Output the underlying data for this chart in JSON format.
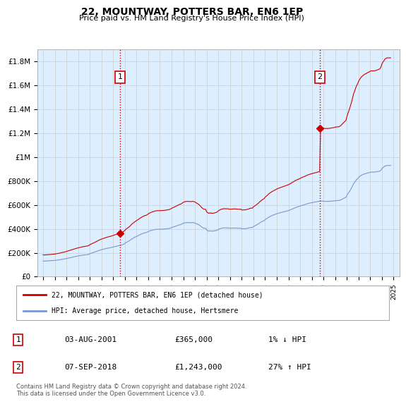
{
  "title": "22, MOUNTWAY, POTTERS BAR, EN6 1EP",
  "subtitle": "Price paid vs. HM Land Registry's House Price Index (HPI)",
  "ylabel_ticks": [
    "£0",
    "£200K",
    "£400K",
    "£600K",
    "£800K",
    "£1M",
    "£1.2M",
    "£1.4M",
    "£1.6M",
    "£1.8M"
  ],
  "ytick_values": [
    0,
    200000,
    400000,
    600000,
    800000,
    1000000,
    1200000,
    1400000,
    1600000,
    1800000
  ],
  "ylim": [
    0,
    1900000
  ],
  "xlim_years": [
    1994.5,
    2025.5
  ],
  "xtick_years": [
    1995,
    1996,
    1997,
    1998,
    1999,
    2000,
    2001,
    2002,
    2003,
    2004,
    2005,
    2006,
    2007,
    2008,
    2009,
    2010,
    2011,
    2012,
    2013,
    2014,
    2015,
    2016,
    2017,
    2018,
    2019,
    2020,
    2021,
    2022,
    2023,
    2024,
    2025
  ],
  "sale1_x": 2001.59,
  "sale1_y": 365000,
  "sale1_label": "1",
  "sale1_date": "03-AUG-2001",
  "sale1_price": "£365,000",
  "sale1_hpi": "1% ↓ HPI",
  "sale2_x": 2018.68,
  "sale2_y": 1243000,
  "sale2_label": "2",
  "sale2_date": "07-SEP-2018",
  "sale2_price": "£1,243,000",
  "sale2_hpi": "27% ↑ HPI",
  "line1_color": "#cc0000",
  "line2_color": "#7799cc",
  "vline_color": "#cc0000",
  "grid_color": "#cccccc",
  "plot_bg_color": "#ddeeff",
  "background_color": "#ffffff",
  "legend1_label": "22, MOUNTWAY, POTTERS BAR, EN6 1EP (detached house)",
  "legend2_label": "HPI: Average price, detached house, Hertsmere",
  "footer": "Contains HM Land Registry data © Crown copyright and database right 2024.\nThis data is licensed under the Open Government Licence v3.0.",
  "hpi_x": [
    1995.0,
    1995.08,
    1995.17,
    1995.25,
    1995.33,
    1995.42,
    1995.5,
    1995.58,
    1995.67,
    1995.75,
    1995.83,
    1995.92,
    1996.0,
    1996.08,
    1996.17,
    1996.25,
    1996.33,
    1996.42,
    1996.5,
    1996.58,
    1996.67,
    1996.75,
    1996.83,
    1996.92,
    1997.0,
    1997.08,
    1997.17,
    1997.25,
    1997.33,
    1997.42,
    1997.5,
    1997.58,
    1997.67,
    1997.75,
    1997.83,
    1997.92,
    1998.0,
    1998.08,
    1998.17,
    1998.25,
    1998.33,
    1998.42,
    1998.5,
    1998.58,
    1998.67,
    1998.75,
    1998.83,
    1998.92,
    1999.0,
    1999.08,
    1999.17,
    1999.25,
    1999.33,
    1999.42,
    1999.5,
    1999.58,
    1999.67,
    1999.75,
    1999.83,
    1999.92,
    2000.0,
    2000.08,
    2000.17,
    2000.25,
    2000.33,
    2000.42,
    2000.5,
    2000.58,
    2000.67,
    2000.75,
    2000.83,
    2000.92,
    2001.0,
    2001.08,
    2001.17,
    2001.25,
    2001.33,
    2001.42,
    2001.5,
    2001.58,
    2001.67,
    2001.75,
    2001.83,
    2001.92,
    2002.0,
    2002.08,
    2002.17,
    2002.25,
    2002.33,
    2002.42,
    2002.5,
    2002.58,
    2002.67,
    2002.75,
    2002.83,
    2002.92,
    2003.0,
    2003.08,
    2003.17,
    2003.25,
    2003.33,
    2003.42,
    2003.5,
    2003.58,
    2003.67,
    2003.75,
    2003.83,
    2003.92,
    2004.0,
    2004.08,
    2004.17,
    2004.25,
    2004.33,
    2004.42,
    2004.5,
    2004.58,
    2004.67,
    2004.75,
    2004.83,
    2004.92,
    2005.0,
    2005.08,
    2005.17,
    2005.25,
    2005.33,
    2005.42,
    2005.5,
    2005.58,
    2005.67,
    2005.75,
    2005.83,
    2005.92,
    2006.0,
    2006.08,
    2006.17,
    2006.25,
    2006.33,
    2006.42,
    2006.5,
    2006.58,
    2006.67,
    2006.75,
    2006.83,
    2006.92,
    2007.0,
    2007.08,
    2007.17,
    2007.25,
    2007.33,
    2007.42,
    2007.5,
    2007.58,
    2007.67,
    2007.75,
    2007.83,
    2007.92,
    2008.0,
    2008.08,
    2008.17,
    2008.25,
    2008.33,
    2008.42,
    2008.5,
    2008.58,
    2008.67,
    2008.75,
    2008.83,
    2008.92,
    2009.0,
    2009.08,
    2009.17,
    2009.25,
    2009.33,
    2009.42,
    2009.5,
    2009.58,
    2009.67,
    2009.75,
    2009.83,
    2009.92,
    2010.0,
    2010.08,
    2010.17,
    2010.25,
    2010.33,
    2010.42,
    2010.5,
    2010.58,
    2010.67,
    2010.75,
    2010.83,
    2010.92,
    2011.0,
    2011.08,
    2011.17,
    2011.25,
    2011.33,
    2011.42,
    2011.5,
    2011.58,
    2011.67,
    2011.75,
    2011.83,
    2011.92,
    2012.0,
    2012.08,
    2012.17,
    2012.25,
    2012.33,
    2012.42,
    2012.5,
    2012.58,
    2012.67,
    2012.75,
    2012.83,
    2012.92,
    2013.0,
    2013.08,
    2013.17,
    2013.25,
    2013.33,
    2013.42,
    2013.5,
    2013.58,
    2013.67,
    2013.75,
    2013.83,
    2013.92,
    2014.0,
    2014.08,
    2014.17,
    2014.25,
    2014.33,
    2014.42,
    2014.5,
    2014.58,
    2014.67,
    2014.75,
    2014.83,
    2014.92,
    2015.0,
    2015.08,
    2015.17,
    2015.25,
    2015.33,
    2015.42,
    2015.5,
    2015.58,
    2015.67,
    2015.75,
    2015.83,
    2015.92,
    2016.0,
    2016.08,
    2016.17,
    2016.25,
    2016.33,
    2016.42,
    2016.5,
    2016.58,
    2016.67,
    2016.75,
    2016.83,
    2016.92,
    2017.0,
    2017.08,
    2017.17,
    2017.25,
    2017.33,
    2017.42,
    2017.5,
    2017.58,
    2017.67,
    2017.75,
    2017.83,
    2017.92,
    2018.0,
    2018.08,
    2018.17,
    2018.25,
    2018.33,
    2018.42,
    2018.5,
    2018.58,
    2018.67,
    2018.75,
    2018.83,
    2018.92,
    2019.0,
    2019.08,
    2019.17,
    2019.25,
    2019.33,
    2019.42,
    2019.5,
    2019.58,
    2019.67,
    2019.75,
    2019.83,
    2019.92,
    2020.0,
    2020.08,
    2020.17,
    2020.25,
    2020.33,
    2020.42,
    2020.5,
    2020.58,
    2020.67,
    2020.75,
    2020.83,
    2020.92,
    2021.0,
    2021.08,
    2021.17,
    2021.25,
    2021.33,
    2021.42,
    2021.5,
    2021.58,
    2021.67,
    2021.75,
    2021.83,
    2021.92,
    2022.0,
    2022.08,
    2022.17,
    2022.25,
    2022.33,
    2022.42,
    2022.5,
    2022.58,
    2022.67,
    2022.75,
    2022.83,
    2022.92,
    2023.0,
    2023.08,
    2023.17,
    2023.25,
    2023.33,
    2023.42,
    2023.5,
    2023.58,
    2023.67,
    2023.75,
    2023.83,
    2023.92,
    2024.0,
    2024.08,
    2024.17,
    2024.25,
    2024.33,
    2024.42,
    2024.5,
    2024.58,
    2024.67,
    2024.75
  ],
  "hpi_y": [
    131000,
    130500,
    130800,
    131200,
    131500,
    132000,
    132500,
    133000,
    133400,
    133800,
    134200,
    135000,
    136000,
    137000,
    138000,
    139000,
    140000,
    141500,
    143000,
    144500,
    146000,
    147000,
    148000,
    150000,
    152000,
    154000,
    156000,
    157500,
    159000,
    161000,
    163000,
    165000,
    167000,
    168500,
    170000,
    171500,
    173000,
    174500,
    176000,
    177500,
    179000,
    180000,
    181000,
    182000,
    183000,
    184000,
    185000,
    188000,
    192000,
    195000,
    198000,
    200500,
    203000,
    206000,
    209000,
    212000,
    215000,
    218000,
    221000,
    224000,
    226000,
    228000,
    230000,
    232000,
    234000,
    236000,
    238000,
    239500,
    241000,
    242000,
    244000,
    246000,
    248000,
    250000,
    252000,
    254000,
    256000,
    258000,
    260000,
    262000,
    264000,
    266000,
    268000,
    273000,
    278000,
    284000,
    290000,
    293500,
    297000,
    303000,
    309000,
    315000,
    320000,
    324000,
    329000,
    333000,
    337000,
    341000,
    345000,
    349000,
    353000,
    357000,
    360000,
    363000,
    366000,
    368000,
    369000,
    373000,
    377000,
    381000,
    384000,
    386500,
    389000,
    391000,
    393000,
    394500,
    396000,
    396500,
    396500,
    397000,
    397000,
    397000,
    397500,
    397500,
    398000,
    399000,
    400000,
    401000,
    402000,
    403000,
    404000,
    407500,
    411000,
    414000,
    416500,
    419000,
    422000,
    425000,
    428000,
    431000,
    434000,
    436000,
    438000,
    443000,
    447000,
    449500,
    451000,
    452500,
    452500,
    452500,
    452500,
    451500,
    451000,
    452500,
    453000,
    451000,
    449000,
    445000,
    441000,
    438000,
    434000,
    428000,
    422000,
    415000,
    410000,
    406000,
    405000,
    404500,
    390000,
    385000,
    381000,
    383000,
    383000,
    382000,
    381000,
    382000,
    383000,
    385000,
    386000,
    390000,
    396000,
    399000,
    403000,
    405000,
    407000,
    407500,
    409000,
    408500,
    408000,
    408500,
    408000,
    406500,
    405000,
    406000,
    406500,
    407000,
    407500,
    407500,
    407000,
    406500,
    406000,
    405500,
    405000,
    406000,
    401000,
    401000,
    402000,
    401500,
    402000,
    403500,
    405000,
    407000,
    409500,
    411500,
    412000,
    412000,
    420000,
    423000,
    427500,
    432000,
    436500,
    441500,
    447000,
    452500,
    457000,
    462000,
    466000,
    469000,
    477000,
    482000,
    487500,
    493000,
    498500,
    503000,
    507500,
    511000,
    514500,
    518000,
    521000,
    524000,
    527000,
    529500,
    532000,
    534000,
    536000,
    538000,
    540000,
    542000,
    544000,
    546000,
    548500,
    551000,
    553000,
    556000,
    559500,
    563000,
    566000,
    570000,
    574000,
    577500,
    580500,
    583000,
    585000,
    588000,
    591000,
    594000,
    597000,
    599000,
    601000,
    604000,
    607000,
    609500,
    612000,
    614000,
    616000,
    618000,
    619000,
    621000,
    622500,
    624000,
    625500,
    627000,
    629000,
    630500,
    631500,
    632000,
    632500,
    633500,
    631000,
    630500,
    630000,
    630000,
    630000,
    630500,
    631000,
    631500,
    632000,
    633000,
    633500,
    634000,
    636000,
    636500,
    637000,
    637000,
    638000,
    640000,
    643000,
    648000,
    652000,
    657000,
    660000,
    664000,
    680000,
    693000,
    705000,
    717000,
    730000,
    746000,
    762000,
    778000,
    790000,
    802000,
    812000,
    820000,
    830000,
    838000,
    844000,
    850000,
    853000,
    857000,
    860000,
    862000,
    864000,
    867000,
    869000,
    871000,
    874000,
    875000,
    875000,
    875000,
    875500,
    876000,
    877000,
    878500,
    880000,
    882000,
    884000,
    892000,
    905000,
    912000,
    918000,
    925000,
    928000,
    930000,
    930500,
    930500,
    930500,
    930500
  ]
}
